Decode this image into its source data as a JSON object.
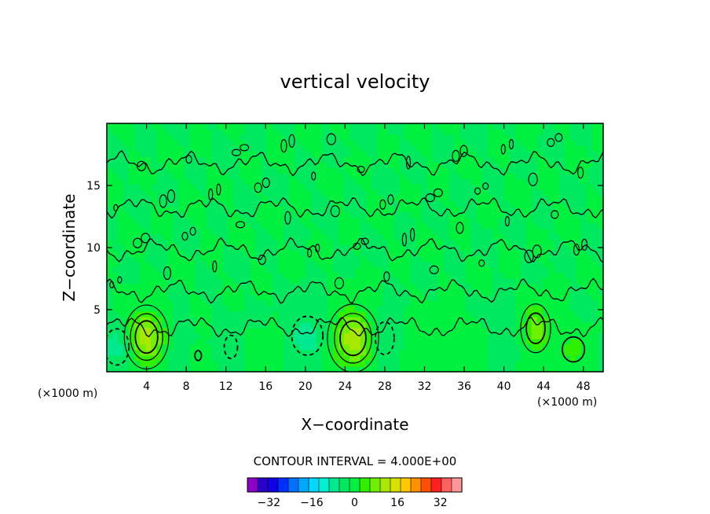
{
  "chart_data": {
    "type": "heatmap",
    "title": "vertical velocity",
    "xlabel": "X−coordinate",
    "ylabel": "Z−coordinate",
    "x_unit_left": "(×1000 m)",
    "x_unit_right": "(×1000 m)",
    "xlim": [
      0,
      50
    ],
    "ylim": [
      0,
      20
    ],
    "x_ticks": [
      4,
      8,
      12,
      16,
      20,
      24,
      28,
      32,
      36,
      40,
      44,
      48
    ],
    "y_ticks": [
      5,
      10,
      15
    ],
    "x_tick_labels": [
      "4",
      "8",
      "12",
      "16",
      "20",
      "24",
      "28",
      "32",
      "36",
      "40",
      "44",
      "48"
    ],
    "y_tick_labels": [
      "5",
      "10",
      "15"
    ],
    "contour_interval_text": "CONTOUR INTERVAL = 4.000E+00",
    "contour_interval": 4.0,
    "features": [
      {
        "kind": "updraft",
        "x": 4.0,
        "z": 2.8,
        "sx": 1.3,
        "sz": 1.5,
        "value": 14
      },
      {
        "kind": "updraft",
        "x": 24.8,
        "z": 2.7,
        "sx": 1.5,
        "sz": 1.6,
        "value": 14
      },
      {
        "kind": "updraft",
        "x": 43.2,
        "z": 3.5,
        "sx": 1.0,
        "sz": 1.3,
        "value": 10
      },
      {
        "kind": "updraft",
        "x": 47.0,
        "z": 1.8,
        "sx": 1.0,
        "sz": 0.9,
        "value": 6
      },
      {
        "kind": "updraft",
        "x": 9.2,
        "z": 1.3,
        "sx": 0.5,
        "sz": 0.6,
        "value": 4
      },
      {
        "kind": "downdraft",
        "x": 1.0,
        "z": 2.0,
        "sx": 1.1,
        "sz": 1.3,
        "value": -6
      },
      {
        "kind": "downdraft",
        "x": 7.0,
        "z": 2.2,
        "sx": 0.8,
        "sz": 1.5,
        "value": -3
      },
      {
        "kind": "downdraft",
        "x": 12.5,
        "z": 2.0,
        "sx": 1.0,
        "sz": 1.4,
        "value": -4
      },
      {
        "kind": "downdraft",
        "x": 20.2,
        "z": 2.9,
        "sx": 1.4,
        "sz": 1.4,
        "value": -6
      },
      {
        "kind": "downdraft",
        "x": 28.0,
        "z": 2.7,
        "sx": 1.0,
        "sz": 1.4,
        "value": -5
      },
      {
        "kind": "downdraft",
        "x": 40.0,
        "z": 2.5,
        "sx": 1.0,
        "sz": 1.5,
        "value": -3
      },
      {
        "kind": "updraft",
        "x": 15.0,
        "z": 1.5,
        "sx": 2.5,
        "sz": 1.2,
        "value": 2
      },
      {
        "kind": "updraft",
        "x": 34.0,
        "z": 1.8,
        "sx": 3.0,
        "sz": 1.6,
        "value": 2
      }
    ],
    "colorbar": {
      "levels": [
        -40,
        -36,
        -32,
        -28,
        -24,
        -20,
        -16,
        -12,
        -8,
        -4,
        0,
        4,
        8,
        12,
        16,
        20,
        24,
        28,
        32,
        36,
        40
      ],
      "colors": [
        "#8c00c8",
        "#2a00c8",
        "#1000e8",
        "#0030ff",
        "#0070ff",
        "#00a8ff",
        "#00d8ff",
        "#00f0d0",
        "#00e890",
        "#00e860",
        "#00f040",
        "#30f000",
        "#70f000",
        "#a8e800",
        "#d8e000",
        "#ffc800",
        "#ff9000",
        "#ff5000",
        "#ff2020",
        "#ff6060",
        "#ff9898"
      ],
      "tick_values": [
        -32,
        -16,
        0,
        16,
        32
      ],
      "tick_labels": [
        "−32",
        "−16",
        "0",
        "16",
        "32"
      ]
    }
  }
}
